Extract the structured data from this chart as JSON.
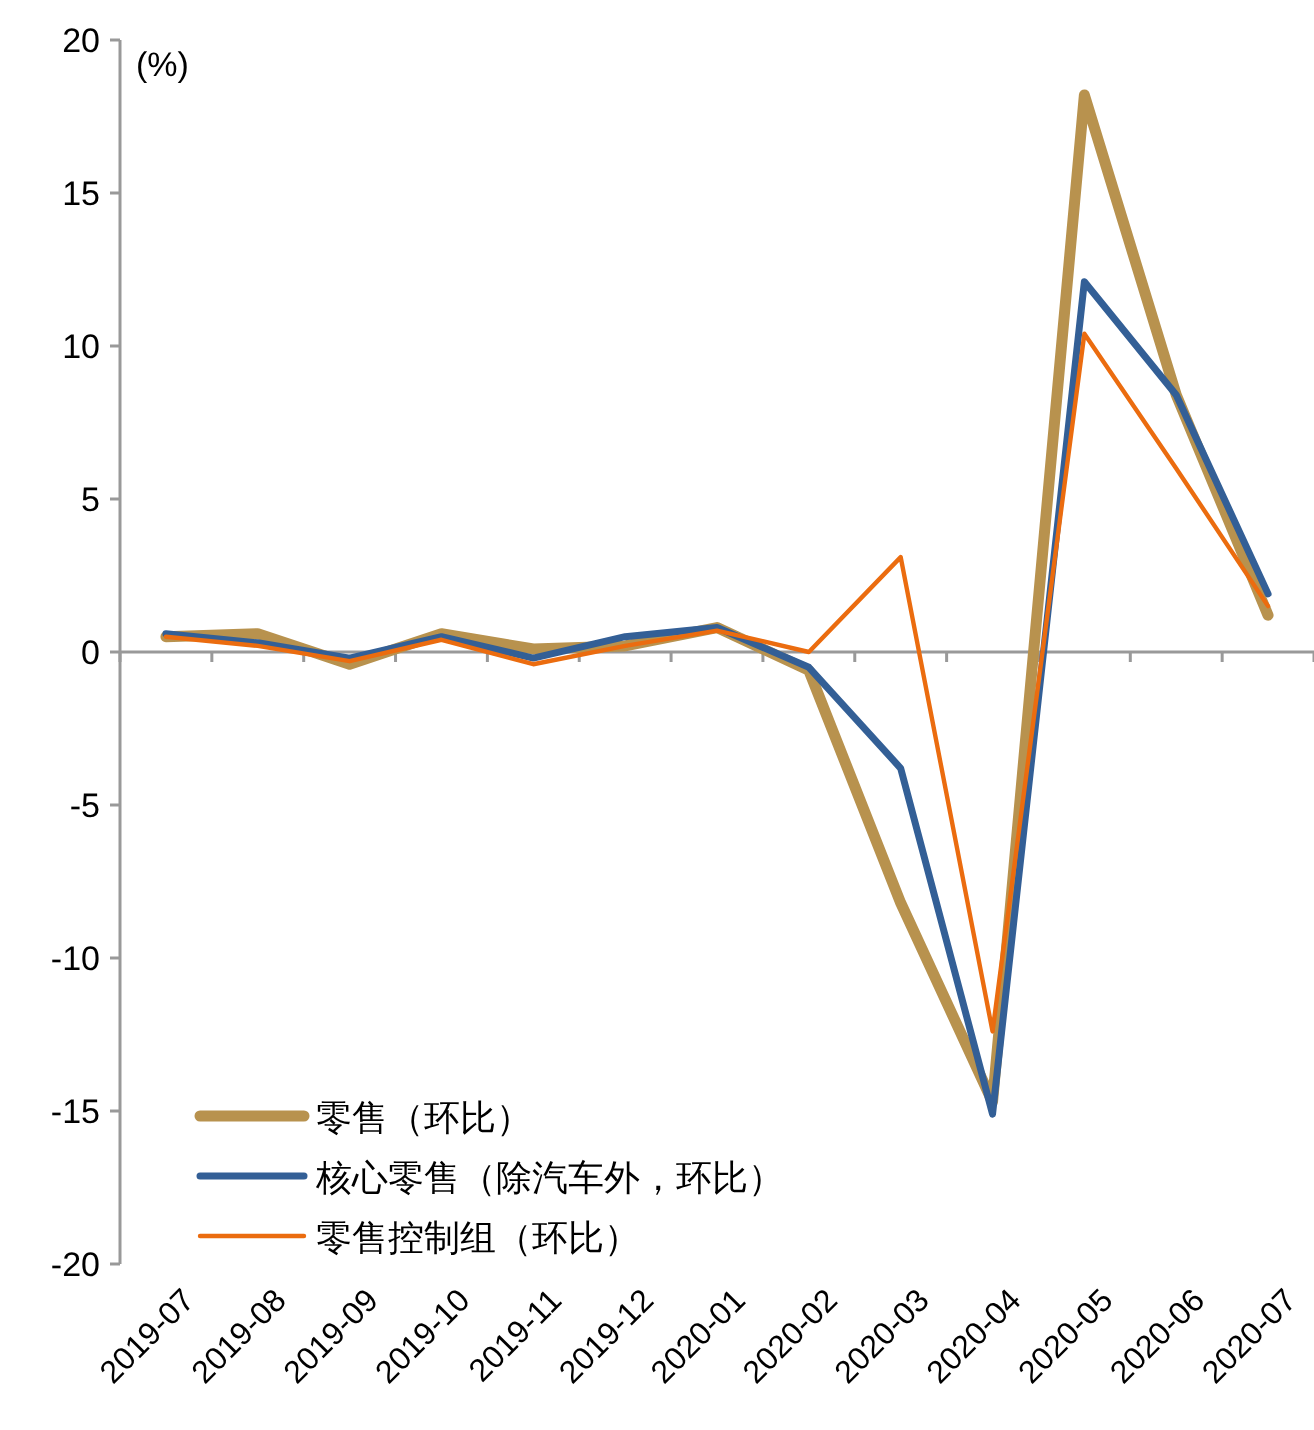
{
  "chart_data": {
    "type": "line",
    "ylabel": "(%)",
    "categories": [
      "2019-07",
      "2019-08",
      "2019-09",
      "2019-10",
      "2019-11",
      "2019-12",
      "2020-01",
      "2020-02",
      "2020-03",
      "2020-04",
      "2020-05",
      "2020-06",
      "2020-07"
    ],
    "series": [
      {
        "name": "零售（环比）",
        "color": "#b8924e",
        "values": [
          0.5,
          0.6,
          -0.4,
          0.6,
          0.1,
          0.2,
          0.8,
          -0.6,
          -8.2,
          -14.7,
          18.2,
          8.4,
          1.2
        ]
      },
      {
        "name": "核心零售（除汽车外，环比）",
        "color": "#335f96",
        "values": [
          0.6,
          0.3,
          -0.2,
          0.5,
          -0.2,
          0.5,
          0.8,
          -0.5,
          -3.8,
          -15.1,
          12.1,
          8.4,
          1.9
        ]
      },
      {
        "name": "零售控制组（环比）",
        "color": "#eb6c0f",
        "values": [
          0.5,
          0.2,
          -0.3,
          0.4,
          -0.4,
          0.2,
          0.7,
          0.0,
          3.1,
          -12.4,
          10.4,
          6.0,
          1.5
        ]
      }
    ],
    "ylim": [
      -20,
      20
    ],
    "yticks": [
      -20,
      -15,
      -10,
      -5,
      0,
      5,
      10,
      15,
      20
    ],
    "legend": "bottom left"
  }
}
